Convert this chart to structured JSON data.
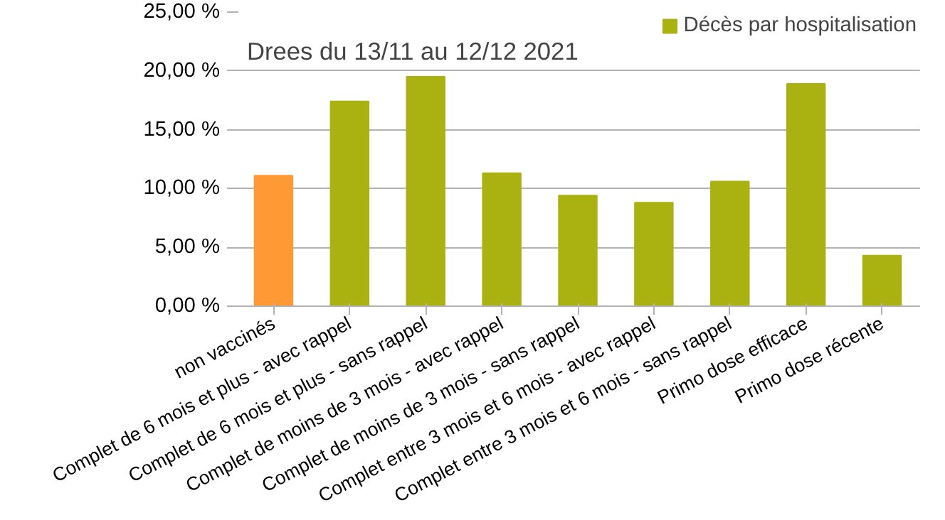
{
  "chart_data": {
    "type": "bar",
    "title": "Drees du 13/11 au 12/12 2021",
    "categories": [
      "non vaccinés",
      "Complet de 6 mois et plus - avec rappel",
      "Complet de 6 mois et plus - sans rappel",
      "Complet de moins de 3 mois - avec rappel",
      "Complet de moins de 3 mois - sans rappel",
      "Complet entre 3 mois et 6 mois - avec rappel",
      "Complet entre 3 mois et 6 mois - sans rappel",
      "Primo dose efficace",
      "Primo dose récente"
    ],
    "series": [
      {
        "name": "Décès par hospitalisation",
        "color": "#aab212",
        "colors": [
          "#ff9933",
          "#aab212",
          "#aab212",
          "#aab212",
          "#aab212",
          "#aab212",
          "#aab212",
          "#aab212",
          "#aab212"
        ],
        "values": [
          11.1,
          17.4,
          19.5,
          11.3,
          9.4,
          8.8,
          10.6,
          18.9,
          4.3
        ]
      }
    ],
    "ylim": [
      0,
      25
    ],
    "yticks": [
      {
        "value": 0,
        "label": "0,00 %"
      },
      {
        "value": 5,
        "label": "5,00 %"
      },
      {
        "value": 10,
        "label": "10,00 %"
      },
      {
        "value": 15,
        "label": "15,00 %"
      },
      {
        "value": 20,
        "label": "20,00 %"
      },
      {
        "value": 25,
        "label": "25,00 %"
      }
    ],
    "grid": "y",
    "legend": "top right"
  }
}
